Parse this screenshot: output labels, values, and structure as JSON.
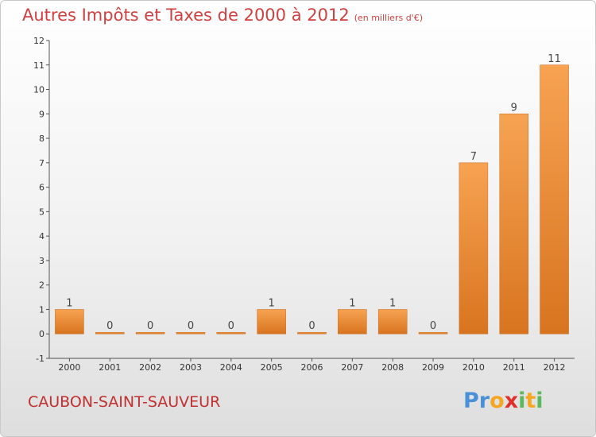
{
  "header": {
    "title": "Autres Impôts et Taxes de 2000 à 2012",
    "subtitle": "(en milliers d'€)"
  },
  "footer": {
    "commune": "CAUBON-SAINT-SAUVEUR",
    "logo_letters": [
      "P",
      "r",
      "o",
      "x",
      "i",
      "t",
      "i"
    ],
    "logo_colors": [
      "#4a90d9",
      "#4a90d9",
      "#f5a623",
      "#e0302a",
      "#5cb85c",
      "#f5a623",
      "#5cb85c"
    ]
  },
  "colors": {
    "title": "#d04040",
    "bar_light": "#f7a352",
    "bar_dark": "#d8741f"
  },
  "chart_data": {
    "type": "bar",
    "categories": [
      "2000",
      "2001",
      "2002",
      "2003",
      "2004",
      "2005",
      "2006",
      "2007",
      "2008",
      "2009",
      "2010",
      "2011",
      "2012"
    ],
    "values": [
      1,
      0,
      0,
      0,
      0,
      1,
      0,
      1,
      1,
      0,
      7,
      9,
      11
    ],
    "ylim": [
      -1,
      12
    ],
    "yticks": [
      -1,
      0,
      1,
      2,
      3,
      4,
      5,
      6,
      7,
      8,
      9,
      10,
      11,
      12
    ],
    "grid": false
  }
}
